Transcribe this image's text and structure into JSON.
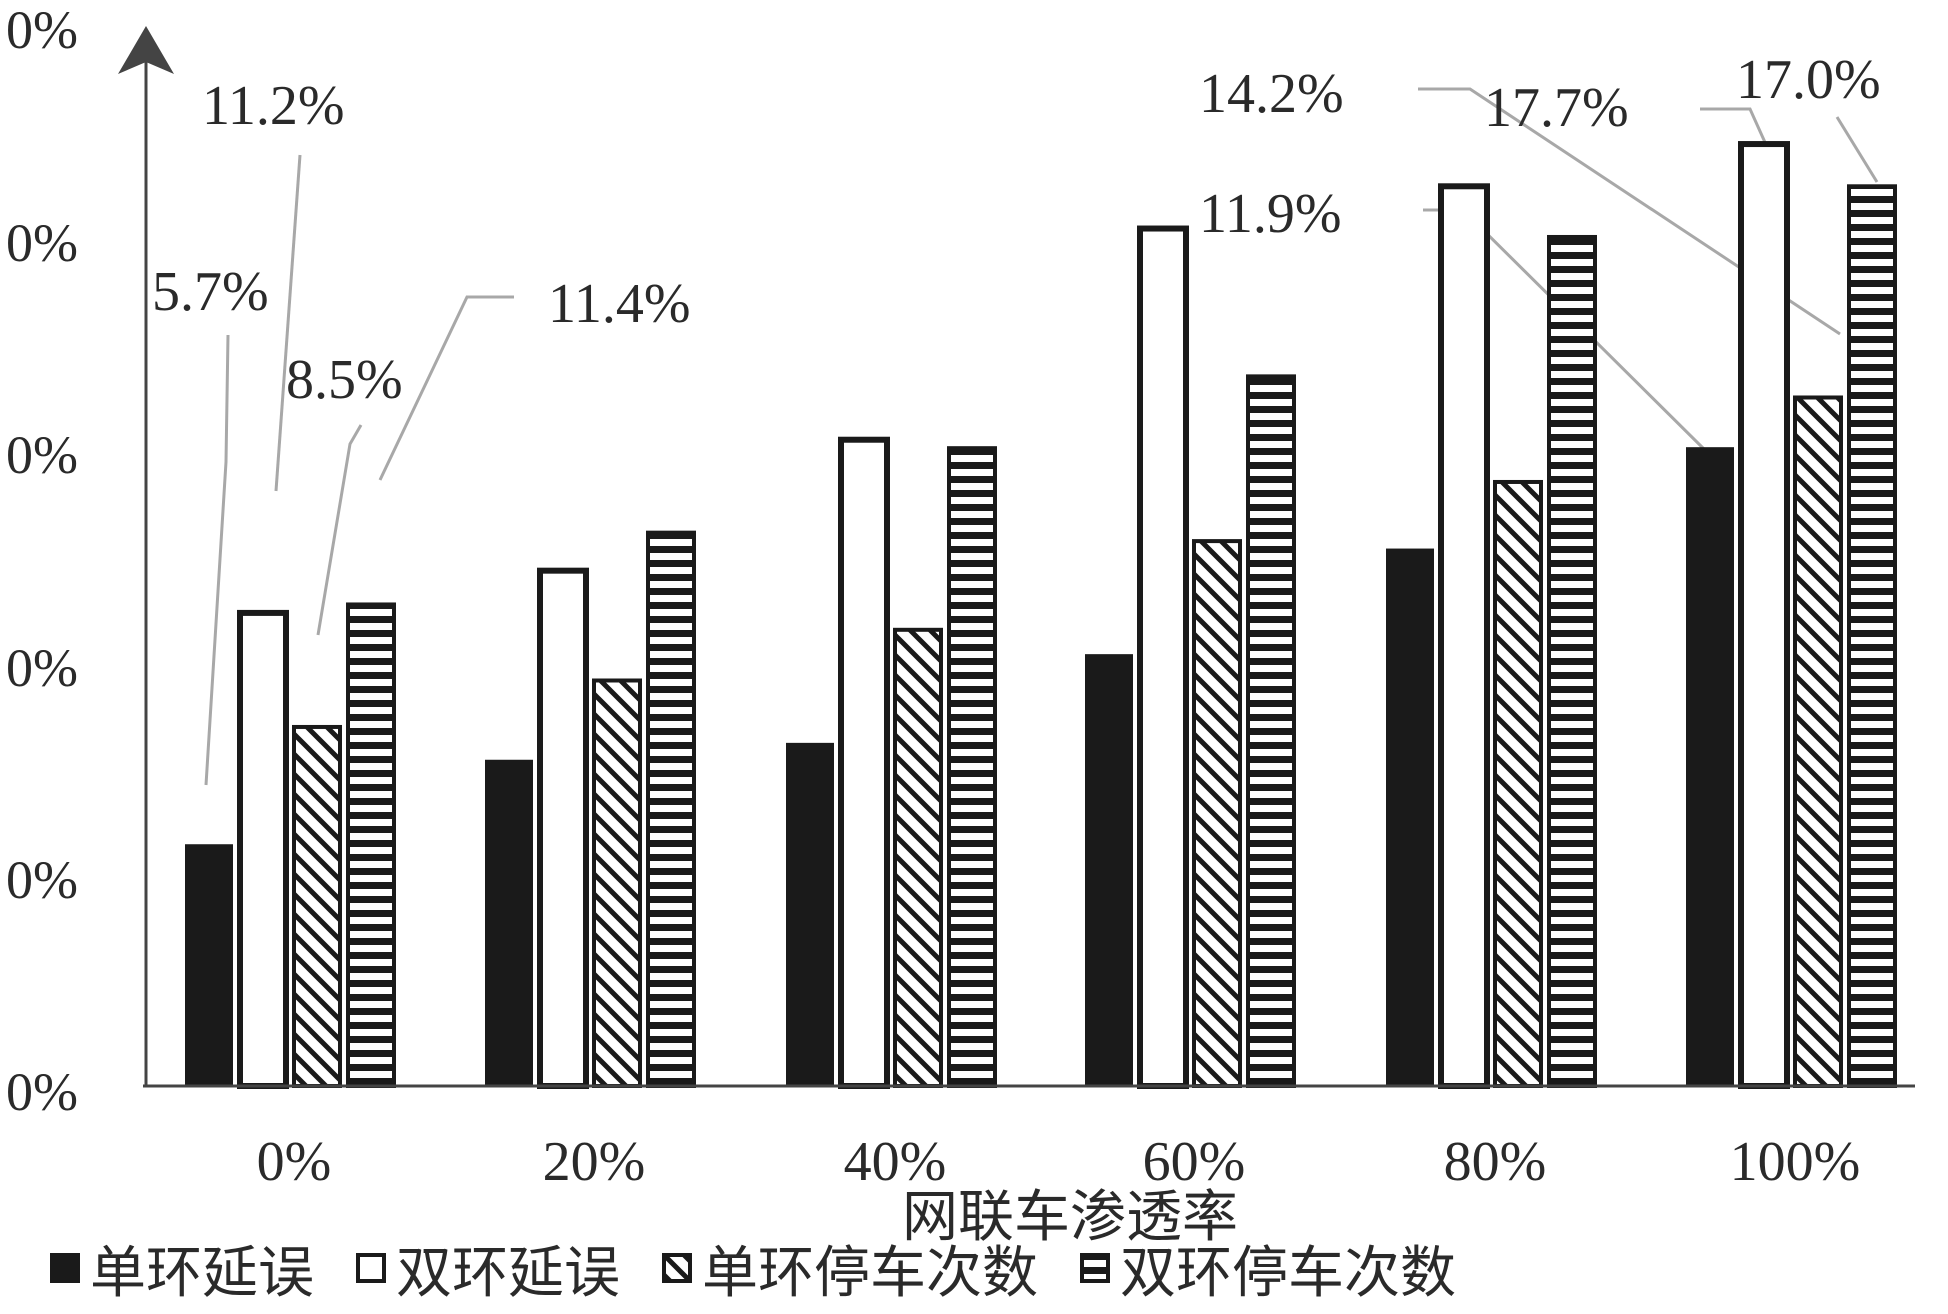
{
  "chart_data": {
    "type": "bar",
    "title": "",
    "xlabel": "网联车渗透率",
    "ylabel": "",
    "categories": [
      "0%",
      "20%",
      "40%",
      "60%",
      "80%",
      "100%"
    ],
    "y_ticks": [
      "0%",
      "0%",
      "0%",
      "0%",
      "0%",
      "0%"
    ],
    "ylim": [
      0,
      25
    ],
    "grid": false,
    "legend_position": "bottom",
    "series": [
      {
        "name": "单环延误",
        "style": "solid",
        "values": [
          5.7,
          7.7,
          8.1,
          10.2,
          12.7,
          15.1
        ]
      },
      {
        "name": "双环延误",
        "style": "open",
        "values": [
          11.2,
          12.2,
          15.3,
          20.3,
          21.3,
          22.3
        ]
      },
      {
        "name": "单环停车次数",
        "style": "diagonal",
        "values": [
          8.5,
          9.6,
          10.8,
          12.9,
          14.3,
          16.3
        ]
      },
      {
        "name": "双环停车次数",
        "style": "horizontal",
        "values": [
          11.4,
          13.1,
          15.1,
          16.8,
          20.1,
          21.3
        ]
      }
    ],
    "annotations": [
      "5.7%",
      "11.2%",
      "8.5%",
      "11.4%",
      "14.2%",
      "17.7%",
      "17.0%",
      "11.9%"
    ],
    "colors": {
      "ink": "#1a1a1a",
      "leader": "#a8a8a8",
      "text": "#2a2a2a",
      "axis": "#444444"
    }
  }
}
